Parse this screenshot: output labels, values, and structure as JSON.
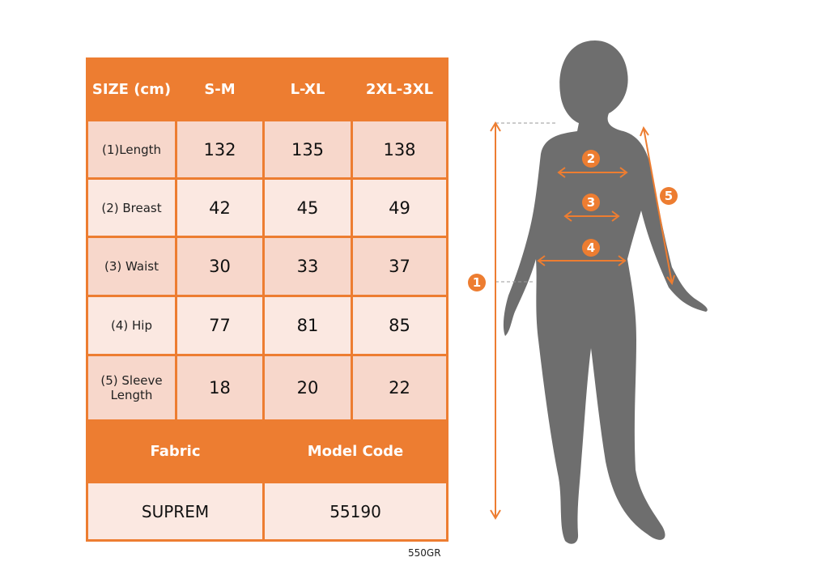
{
  "table": {
    "header": [
      "SIZE (cm)",
      "S-M",
      "L-XL",
      "2XL-3XL"
    ],
    "rows": [
      {
        "label": "(1)Length",
        "values": [
          "132",
          "135",
          "138"
        ]
      },
      {
        "label": "(2) Breast",
        "values": [
          "42",
          "45",
          "49"
        ]
      },
      {
        "label": "(3) Waist",
        "values": [
          "30",
          "33",
          "37"
        ]
      },
      {
        "label": "(4) Hip",
        "values": [
          "77",
          "81",
          "85"
        ]
      },
      {
        "label": "(5) Sleeve Length",
        "values": [
          "18",
          "20",
          "22"
        ]
      }
    ],
    "footer_header": [
      "Fabric",
      "Model Code"
    ],
    "footer_values": [
      "SUPREM",
      "55190"
    ]
  },
  "product_code": "550GR",
  "figure": {
    "markers": [
      "1",
      "2",
      "3",
      "4",
      "5"
    ]
  },
  "colors": {
    "accent": "#ED7D31",
    "cell": "#F7D7CB",
    "cell_light": "#FBE8E1",
    "silhouette": "#6E6E6E"
  }
}
